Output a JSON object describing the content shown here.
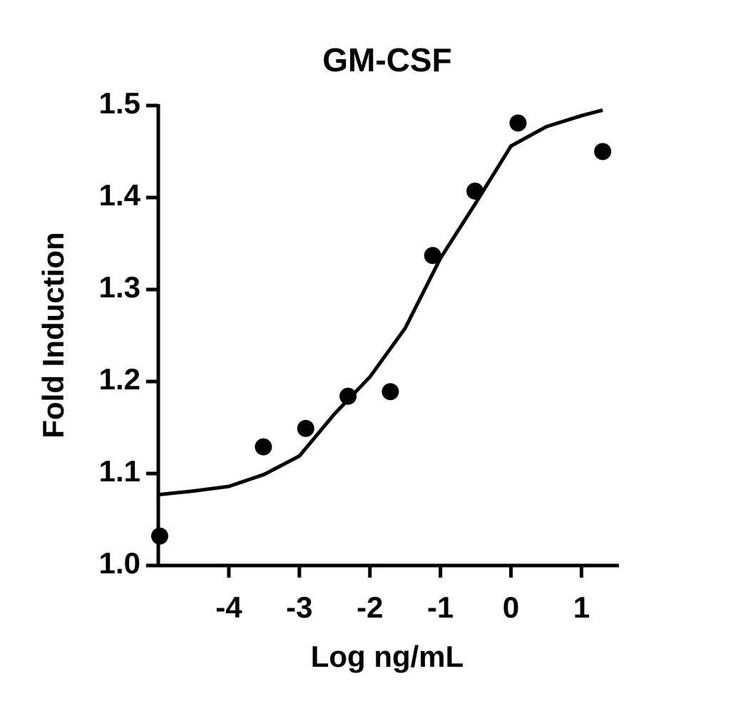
{
  "chart_data": {
    "type": "scatter",
    "title": "GM-CSF",
    "xlabel": "Log ng/mL",
    "ylabel": "Fold Induction",
    "series": [
      {
        "name": "data",
        "color": "#000000",
        "mode": "markers",
        "x": [
          -4.98,
          -3.51,
          -2.91,
          -2.31,
          -1.71,
          -1.11,
          -0.51,
          0.1,
          1.3
        ],
        "values": [
          1.032,
          1.129,
          1.149,
          1.184,
          1.189,
          1.337,
          1.407,
          1.481,
          1.45
        ]
      },
      {
        "name": "fit",
        "color": "#000000",
        "mode": "line",
        "x": [
          -5,
          -4.5,
          -4,
          -3.5,
          -3,
          -2.5,
          -2,
          -1.5,
          -1,
          -0.5,
          0,
          0.5,
          1,
          1.3
        ],
        "values": [
          1.077,
          1.081,
          1.086,
          1.099,
          1.119,
          1.165,
          1.205,
          1.258,
          1.334,
          1.394,
          1.456,
          1.477,
          1.489,
          1.495
        ]
      }
    ],
    "xlim": [
      -5,
      1.5
    ],
    "ylim": [
      1.0,
      1.5
    ],
    "xticks": [
      -4,
      -3,
      -2,
      -1,
      0,
      1
    ],
    "yticks": [
      {
        "value": 1,
        "label": "1.0"
      },
      1.1,
      1.2,
      1.3,
      1.4,
      {
        "value": 1.5,
        "label": "1.5"
      }
    ],
    "grid": false
  }
}
